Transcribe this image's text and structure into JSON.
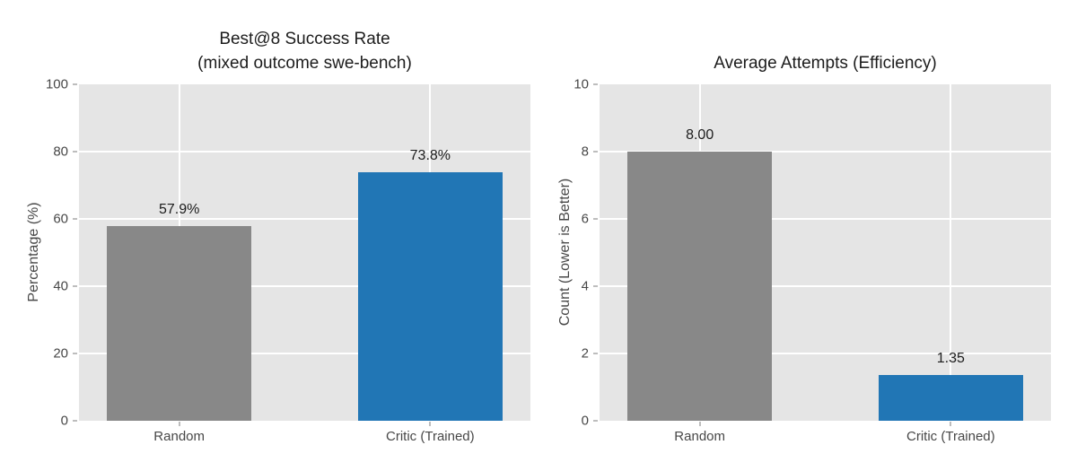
{
  "figure": {
    "background": "#ffffff"
  },
  "chart_data": [
    {
      "type": "bar",
      "title_lines": [
        "Best@8 Success Rate",
        "(mixed outcome swe-bench)"
      ],
      "ylabel": "Percentage (%)",
      "xlabel": "",
      "categories": [
        "Random",
        "Critic (Trained)"
      ],
      "values": [
        57.9,
        73.8
      ],
      "value_labels": [
        "57.9%",
        "73.8%"
      ],
      "bar_colors": [
        "#888888",
        "#2176b5"
      ],
      "ylim": [
        0,
        100
      ],
      "yticks": [
        0,
        20,
        40,
        60,
        80,
        100
      ],
      "grid": true,
      "gridline_color": "#ffffff",
      "plot_bg": "#e5e5e5",
      "legend": "none"
    },
    {
      "type": "bar",
      "title_lines": [
        "Average Attempts (Efficiency)"
      ],
      "ylabel": "Count (Lower is Better)",
      "xlabel": "",
      "categories": [
        "Random",
        "Critic (Trained)"
      ],
      "values": [
        8.0,
        1.35
      ],
      "value_labels": [
        "8.00",
        "1.35"
      ],
      "bar_colors": [
        "#888888",
        "#2176b5"
      ],
      "ylim": [
        0,
        10
      ],
      "yticks": [
        0,
        2,
        4,
        6,
        8,
        10
      ],
      "grid": true,
      "gridline_color": "#ffffff",
      "plot_bg": "#e5e5e5",
      "legend": "none"
    }
  ]
}
